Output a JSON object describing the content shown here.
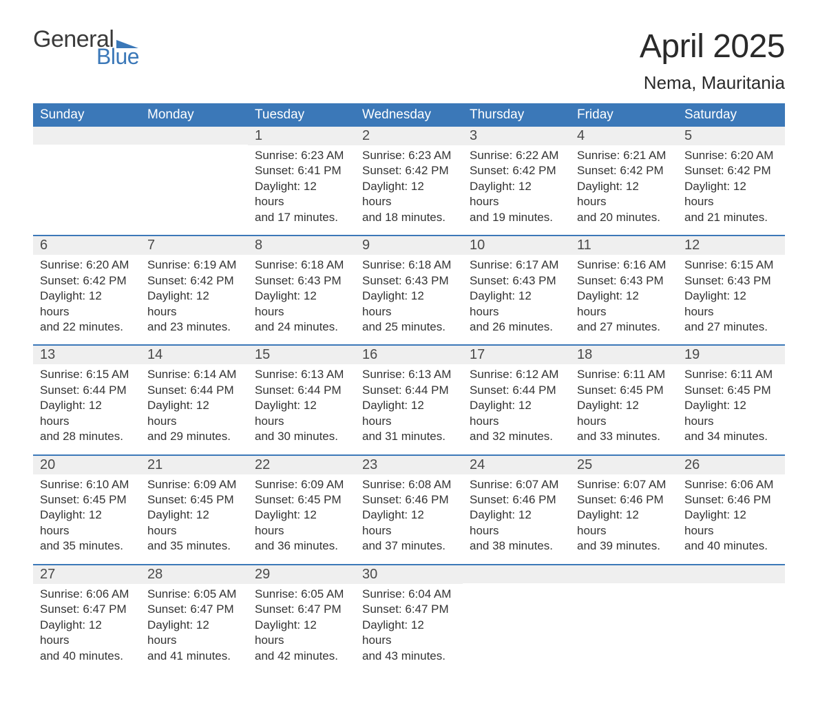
{
  "brand": {
    "word1": "General",
    "word2": "Blue",
    "word1_color": "#3a3a3a",
    "word2_color": "#3b78b8",
    "shape_color": "#3b78b8"
  },
  "title": "April 2025",
  "location": "Nema, Mauritania",
  "colors": {
    "header_bg": "#3b78b8",
    "header_text": "#ffffff",
    "daynum_bg": "#efefef",
    "week_divider": "#3b78b8",
    "body_text": "#333333",
    "page_bg": "#ffffff"
  },
  "typography": {
    "title_fontsize": 48,
    "location_fontsize": 26,
    "weekday_fontsize": 19,
    "daynum_fontsize": 20,
    "body_fontsize": 17
  },
  "layout": {
    "columns": 7,
    "rows": 5,
    "cell_min_height": 128
  },
  "weekdays": [
    "Sunday",
    "Monday",
    "Tuesday",
    "Wednesday",
    "Thursday",
    "Friday",
    "Saturday"
  ],
  "labels": {
    "sunrise": "Sunrise: ",
    "sunset": "Sunset: ",
    "daylight_prefix": "Daylight: ",
    "daylight_and": " and ",
    "daylight_hours_word": " hours",
    "daylight_minutes_suffix": " minutes."
  },
  "weeks": [
    [
      {
        "blank": true
      },
      {
        "blank": true
      },
      {
        "day": "1",
        "sunrise": "6:23 AM",
        "sunset": "6:41 PM",
        "dl_h": "12",
        "dl_m": "17"
      },
      {
        "day": "2",
        "sunrise": "6:23 AM",
        "sunset": "6:42 PM",
        "dl_h": "12",
        "dl_m": "18"
      },
      {
        "day": "3",
        "sunrise": "6:22 AM",
        "sunset": "6:42 PM",
        "dl_h": "12",
        "dl_m": "19"
      },
      {
        "day": "4",
        "sunrise": "6:21 AM",
        "sunset": "6:42 PM",
        "dl_h": "12",
        "dl_m": "20"
      },
      {
        "day": "5",
        "sunrise": "6:20 AM",
        "sunset": "6:42 PM",
        "dl_h": "12",
        "dl_m": "21"
      }
    ],
    [
      {
        "day": "6",
        "sunrise": "6:20 AM",
        "sunset": "6:42 PM",
        "dl_h": "12",
        "dl_m": "22"
      },
      {
        "day": "7",
        "sunrise": "6:19 AM",
        "sunset": "6:42 PM",
        "dl_h": "12",
        "dl_m": "23"
      },
      {
        "day": "8",
        "sunrise": "6:18 AM",
        "sunset": "6:43 PM",
        "dl_h": "12",
        "dl_m": "24"
      },
      {
        "day": "9",
        "sunrise": "6:18 AM",
        "sunset": "6:43 PM",
        "dl_h": "12",
        "dl_m": "25"
      },
      {
        "day": "10",
        "sunrise": "6:17 AM",
        "sunset": "6:43 PM",
        "dl_h": "12",
        "dl_m": "26"
      },
      {
        "day": "11",
        "sunrise": "6:16 AM",
        "sunset": "6:43 PM",
        "dl_h": "12",
        "dl_m": "27"
      },
      {
        "day": "12",
        "sunrise": "6:15 AM",
        "sunset": "6:43 PM",
        "dl_h": "12",
        "dl_m": "27"
      }
    ],
    [
      {
        "day": "13",
        "sunrise": "6:15 AM",
        "sunset": "6:44 PM",
        "dl_h": "12",
        "dl_m": "28"
      },
      {
        "day": "14",
        "sunrise": "6:14 AM",
        "sunset": "6:44 PM",
        "dl_h": "12",
        "dl_m": "29"
      },
      {
        "day": "15",
        "sunrise": "6:13 AM",
        "sunset": "6:44 PM",
        "dl_h": "12",
        "dl_m": "30"
      },
      {
        "day": "16",
        "sunrise": "6:13 AM",
        "sunset": "6:44 PM",
        "dl_h": "12",
        "dl_m": "31"
      },
      {
        "day": "17",
        "sunrise": "6:12 AM",
        "sunset": "6:44 PM",
        "dl_h": "12",
        "dl_m": "32"
      },
      {
        "day": "18",
        "sunrise": "6:11 AM",
        "sunset": "6:45 PM",
        "dl_h": "12",
        "dl_m": "33"
      },
      {
        "day": "19",
        "sunrise": "6:11 AM",
        "sunset": "6:45 PM",
        "dl_h": "12",
        "dl_m": "34"
      }
    ],
    [
      {
        "day": "20",
        "sunrise": "6:10 AM",
        "sunset": "6:45 PM",
        "dl_h": "12",
        "dl_m": "35"
      },
      {
        "day": "21",
        "sunrise": "6:09 AM",
        "sunset": "6:45 PM",
        "dl_h": "12",
        "dl_m": "35"
      },
      {
        "day": "22",
        "sunrise": "6:09 AM",
        "sunset": "6:45 PM",
        "dl_h": "12",
        "dl_m": "36"
      },
      {
        "day": "23",
        "sunrise": "6:08 AM",
        "sunset": "6:46 PM",
        "dl_h": "12",
        "dl_m": "37"
      },
      {
        "day": "24",
        "sunrise": "6:07 AM",
        "sunset": "6:46 PM",
        "dl_h": "12",
        "dl_m": "38"
      },
      {
        "day": "25",
        "sunrise": "6:07 AM",
        "sunset": "6:46 PM",
        "dl_h": "12",
        "dl_m": "39"
      },
      {
        "day": "26",
        "sunrise": "6:06 AM",
        "sunset": "6:46 PM",
        "dl_h": "12",
        "dl_m": "40"
      }
    ],
    [
      {
        "day": "27",
        "sunrise": "6:06 AM",
        "sunset": "6:47 PM",
        "dl_h": "12",
        "dl_m": "40"
      },
      {
        "day": "28",
        "sunrise": "6:05 AM",
        "sunset": "6:47 PM",
        "dl_h": "12",
        "dl_m": "41"
      },
      {
        "day": "29",
        "sunrise": "6:05 AM",
        "sunset": "6:47 PM",
        "dl_h": "12",
        "dl_m": "42"
      },
      {
        "day": "30",
        "sunrise": "6:04 AM",
        "sunset": "6:47 PM",
        "dl_h": "12",
        "dl_m": "43"
      },
      {
        "blank": true
      },
      {
        "blank": true
      },
      {
        "blank": true
      }
    ]
  ]
}
